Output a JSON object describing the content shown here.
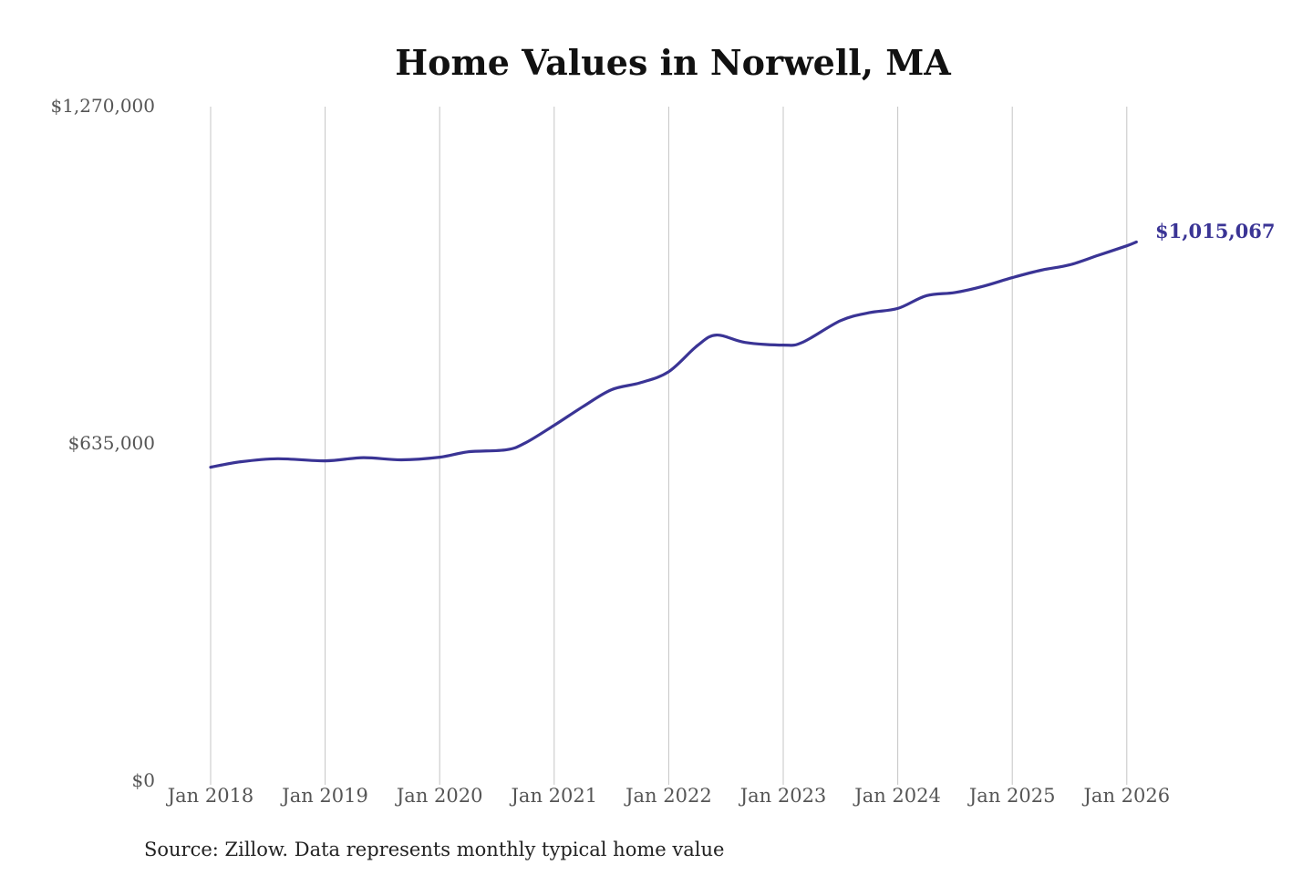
{
  "chart_data": {
    "type": "line",
    "title": "Home Values in Norwell, MA",
    "xlabel": "",
    "ylabel": "",
    "ylim": [
      0,
      1270000
    ],
    "y_ticks": [
      {
        "value": 0,
        "label": "$0"
      },
      {
        "value": 635000,
        "label": "$635,000"
      },
      {
        "value": 1270000,
        "label": "$1,270,000"
      }
    ],
    "x_ticks": [
      {
        "date": "2018-01",
        "label": "Jan 2018"
      },
      {
        "date": "2019-01",
        "label": "Jan 2019"
      },
      {
        "date": "2020-01",
        "label": "Jan 2020"
      },
      {
        "date": "2021-01",
        "label": "Jan 2021"
      },
      {
        "date": "2022-01",
        "label": "Jan 2022"
      },
      {
        "date": "2023-01",
        "label": "Jan 2023"
      },
      {
        "date": "2024-01",
        "label": "Jan 2024"
      },
      {
        "date": "2025-01",
        "label": "Jan 2025"
      },
      {
        "date": "2026-01",
        "label": "Jan 2026"
      }
    ],
    "grid": "vertical",
    "series": [
      {
        "color": "#3a3495",
        "points": [
          {
            "x": "2018-01",
            "y": 591000
          },
          {
            "x": "2018-04",
            "y": 601000
          },
          {
            "x": "2018-08",
            "y": 607000
          },
          {
            "x": "2019-01",
            "y": 603000
          },
          {
            "x": "2019-05",
            "y": 609000
          },
          {
            "x": "2019-09",
            "y": 605000
          },
          {
            "x": "2020-01",
            "y": 610000
          },
          {
            "x": "2020-04",
            "y": 620000
          },
          {
            "x": "2020-08",
            "y": 624000
          },
          {
            "x": "2020-10",
            "y": 637000
          },
          {
            "x": "2021-01",
            "y": 670000
          },
          {
            "x": "2021-04",
            "y": 705000
          },
          {
            "x": "2021-07",
            "y": 737000
          },
          {
            "x": "2021-10",
            "y": 750000
          },
          {
            "x": "2022-01",
            "y": 771000
          },
          {
            "x": "2022-04",
            "y": 820000
          },
          {
            "x": "2022-06",
            "y": 840000
          },
          {
            "x": "2022-09",
            "y": 826000
          },
          {
            "x": "2023-01",
            "y": 821000
          },
          {
            "x": "2023-03",
            "y": 826000
          },
          {
            "x": "2023-07",
            "y": 867000
          },
          {
            "x": "2023-10",
            "y": 882000
          },
          {
            "x": "2024-01",
            "y": 890000
          },
          {
            "x": "2024-04",
            "y": 914000
          },
          {
            "x": "2024-07",
            "y": 920000
          },
          {
            "x": "2024-10",
            "y": 932000
          },
          {
            "x": "2025-01",
            "y": 948000
          },
          {
            "x": "2025-04",
            "y": 962000
          },
          {
            "x": "2025-07",
            "y": 972000
          },
          {
            "x": "2025-10",
            "y": 990000
          },
          {
            "x": "2026-01",
            "y": 1008000
          },
          {
            "x": "2026-02",
            "y": 1015067
          }
        ]
      }
    ],
    "end_label": "$1,015,067",
    "source_note": "Source: Zillow. Data represents monthly typical home value"
  }
}
